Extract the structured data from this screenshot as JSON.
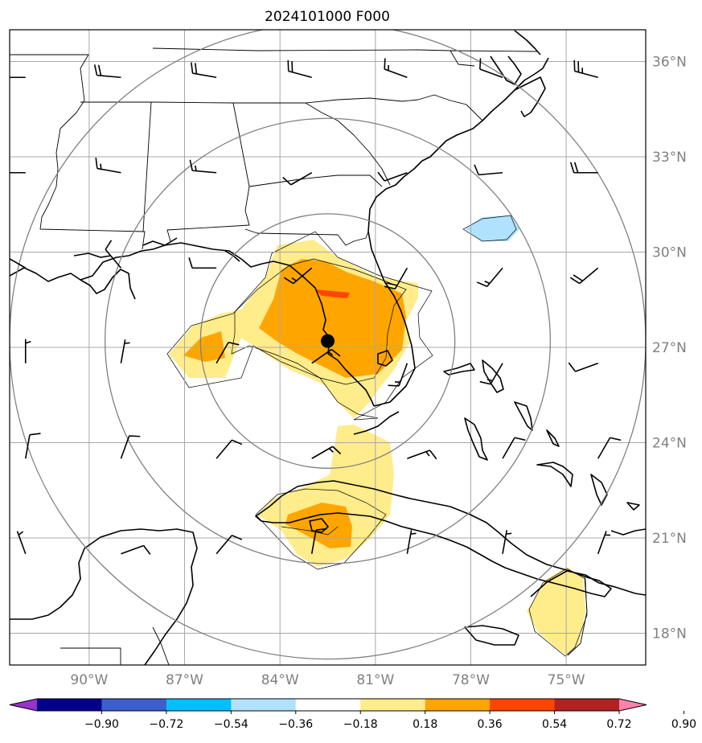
{
  "title": "2024101000 F000",
  "map": {
    "lon_range": [
      -92.5,
      -72.5
    ],
    "lat_range": [
      17.0,
      37.0
    ],
    "lat_ticks": [
      {
        "value": 36,
        "label": "36°N"
      },
      {
        "value": 33,
        "label": "33°N"
      },
      {
        "value": 30,
        "label": "30°N"
      },
      {
        "value": 27,
        "label": "27°N"
      },
      {
        "value": 24,
        "label": "24°N"
      },
      {
        "value": 21,
        "label": "21°N"
      },
      {
        "value": 18,
        "label": "18°N"
      }
    ],
    "lon_ticks": [
      {
        "value": -90,
        "label": "90°W"
      },
      {
        "value": -87,
        "label": "87°W"
      },
      {
        "value": -84,
        "label": "84°W"
      },
      {
        "value": -81,
        "label": "81°W"
      },
      {
        "value": -78,
        "label": "78°W"
      },
      {
        "value": -75,
        "label": "75°W"
      }
    ],
    "gridlines": true,
    "storm_center": {
      "lon": -82.5,
      "lat": 27.2
    },
    "range_rings_deg": [
      4,
      7,
      10
    ],
    "land_color": "#ffffff",
    "coastline_color": "#000000",
    "ring_color": "#808080"
  },
  "colorbar": {
    "boundaries": [
      -1.08,
      -0.9,
      -0.72,
      -0.54,
      -0.36,
      -0.18,
      0.18,
      0.36,
      0.54,
      0.72,
      0.9,
      1.08
    ],
    "colors": [
      "#9932cc",
      "#00008b",
      "#3a5fcd",
      "#00bfff",
      "#b0e2ff",
      "#ffffff",
      "#ffec8b",
      "#ffa500",
      "#ff4500",
      "#b22222",
      "#ff82ab"
    ],
    "extend": "both",
    "tick_labels": [
      "−0.90",
      "−0.72",
      "−0.54",
      "−0.36",
      "−0.18",
      "0.18",
      "0.36",
      "0.54",
      "0.72",
      "0.90"
    ]
  },
  "field_shading": [
    {
      "level": "0.18–0.36",
      "color": "#ffec8b",
      "region": "florida-and-gulf"
    },
    {
      "level": "0.18–0.36",
      "color": "#ffec8b",
      "region": "florida-straits-to-cuba"
    },
    {
      "level": "0.18–0.36",
      "color": "#ffec8b",
      "region": "haiti"
    },
    {
      "level": "0.36–0.54",
      "color": "#ffa500",
      "region": "central-florida"
    },
    {
      "level": "0.36–0.54",
      "color": "#ffa500",
      "region": "eastern-gulf"
    },
    {
      "level": "0.36–0.54",
      "color": "#ffa500",
      "region": "western-cuba"
    },
    {
      "level": "0.54–0.72",
      "color": "#ff4500",
      "region": "north-central-florida"
    },
    {
      "level": "−0.36–−0.18",
      "color": "#b0e2ff",
      "region": "atlantic-east-of-georgia"
    }
  ],
  "wind_barbs": {
    "rows_lat": [
      35.5,
      32.5,
      29.5,
      26.5,
      23.5,
      20.5
    ],
    "cols_lon": [
      -92,
      -89,
      -86,
      -83,
      -80,
      -77,
      -74
    ],
    "barbs": [
      [
        {
          "dir": 270,
          "spd": 10
        },
        {
          "dir": 275,
          "spd": 20
        },
        {
          "dir": 280,
          "spd": 20
        },
        {
          "dir": 285,
          "spd": 20
        },
        {
          "dir": 290,
          "spd": 15
        },
        {
          "dir": 290,
          "spd": 10
        },
        {
          "dir": 285,
          "spd": 25
        }
      ],
      [
        {
          "dir": 270,
          "spd": 15
        },
        {
          "dir": 280,
          "spd": 15
        },
        {
          "dir": 275,
          "spd": 15
        },
        {
          "dir": 240,
          "spd": 10
        },
        {
          "dir": 250,
          "spd": 10
        },
        {
          "dir": 265,
          "spd": 10
        },
        {
          "dir": 270,
          "spd": 20
        }
      ],
      [
        {
          "dir": 300,
          "spd": 10
        },
        {
          "dir": 320,
          "spd": 10
        },
        {
          "dir": 270,
          "spd": 10
        },
        {
          "dir": 230,
          "spd": 15
        },
        {
          "dir": 210,
          "spd": 20
        },
        {
          "dir": 220,
          "spd": 15
        },
        {
          "dir": 230,
          "spd": 20
        }
      ],
      [
        {
          "dir": 360,
          "spd": 5
        },
        {
          "dir": 10,
          "spd": 5
        },
        {
          "dir": 30,
          "spd": 10
        },
        {
          "dir": 55,
          "spd": 15
        },
        {
          "dir": 200,
          "spd": 15
        },
        {
          "dir": 210,
          "spd": 15
        },
        {
          "dir": 250,
          "spd": 10
        }
      ],
      [
        {
          "dir": 10,
          "spd": 10
        },
        {
          "dir": 20,
          "spd": 10
        },
        {
          "dir": 40,
          "spd": 10
        },
        {
          "dir": 60,
          "spd": 15
        },
        {
          "dir": 70,
          "spd": 15
        },
        {
          "dir": 30,
          "spd": 10
        },
        {
          "dir": 30,
          "spd": 10
        }
      ],
      [
        {
          "dir": 340,
          "spd": 5
        },
        {
          "dir": 70,
          "spd": 10
        },
        {
          "dir": 40,
          "spd": 10
        },
        {
          "dir": 10,
          "spd": 10
        },
        {
          "dir": 10,
          "spd": 5
        },
        {
          "dir": 10,
          "spd": 5
        },
        {
          "dir": 20,
          "spd": 5
        }
      ]
    ]
  }
}
